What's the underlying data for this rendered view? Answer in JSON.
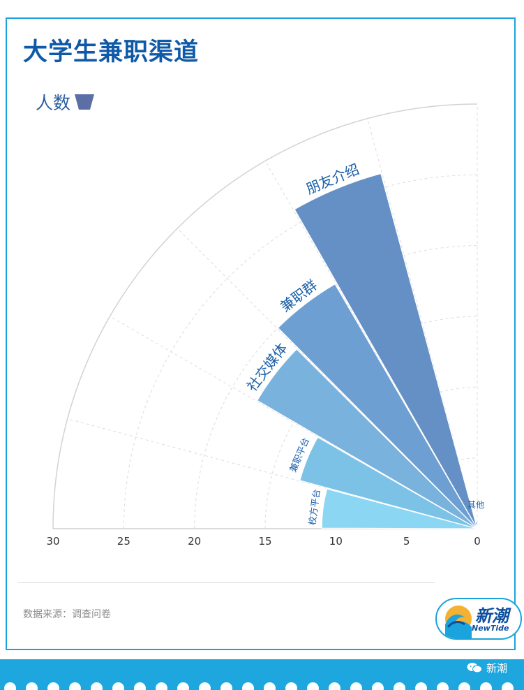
{
  "title": "大学生兼职渠道",
  "legend": {
    "label": "人数"
  },
  "source": "数据来源：调查问卷",
  "logo": {
    "main": "新潮",
    "sub": "NewTide"
  },
  "wechat": {
    "label": "新潮"
  },
  "colors": {
    "legend": "#5b6fa6",
    "title": "#0f5aa8",
    "border": "#1aa3dc",
    "band": "#1ea6de",
    "label": "#1a5fa8",
    "grid": "#cccccc",
    "tick": "#333333"
  },
  "chart_data": {
    "type": "polar-bar",
    "categories": [
      "校方平台",
      "兼职平台",
      "社交媒体",
      "兼职群",
      "朋友介绍",
      "其他"
    ],
    "values": [
      11,
      13,
      18,
      20,
      26,
      0.5
    ],
    "colors": [
      "#8bd6f2",
      "#7cc2e6",
      "#79b2dc",
      "#6e9fd2",
      "#6490c6",
      "#6a7fbf"
    ],
    "radial_ticks": [
      "30",
      "25",
      "20",
      "15",
      "10",
      "5",
      "0"
    ],
    "rlim": [
      0,
      30
    ],
    "grid": true
  }
}
